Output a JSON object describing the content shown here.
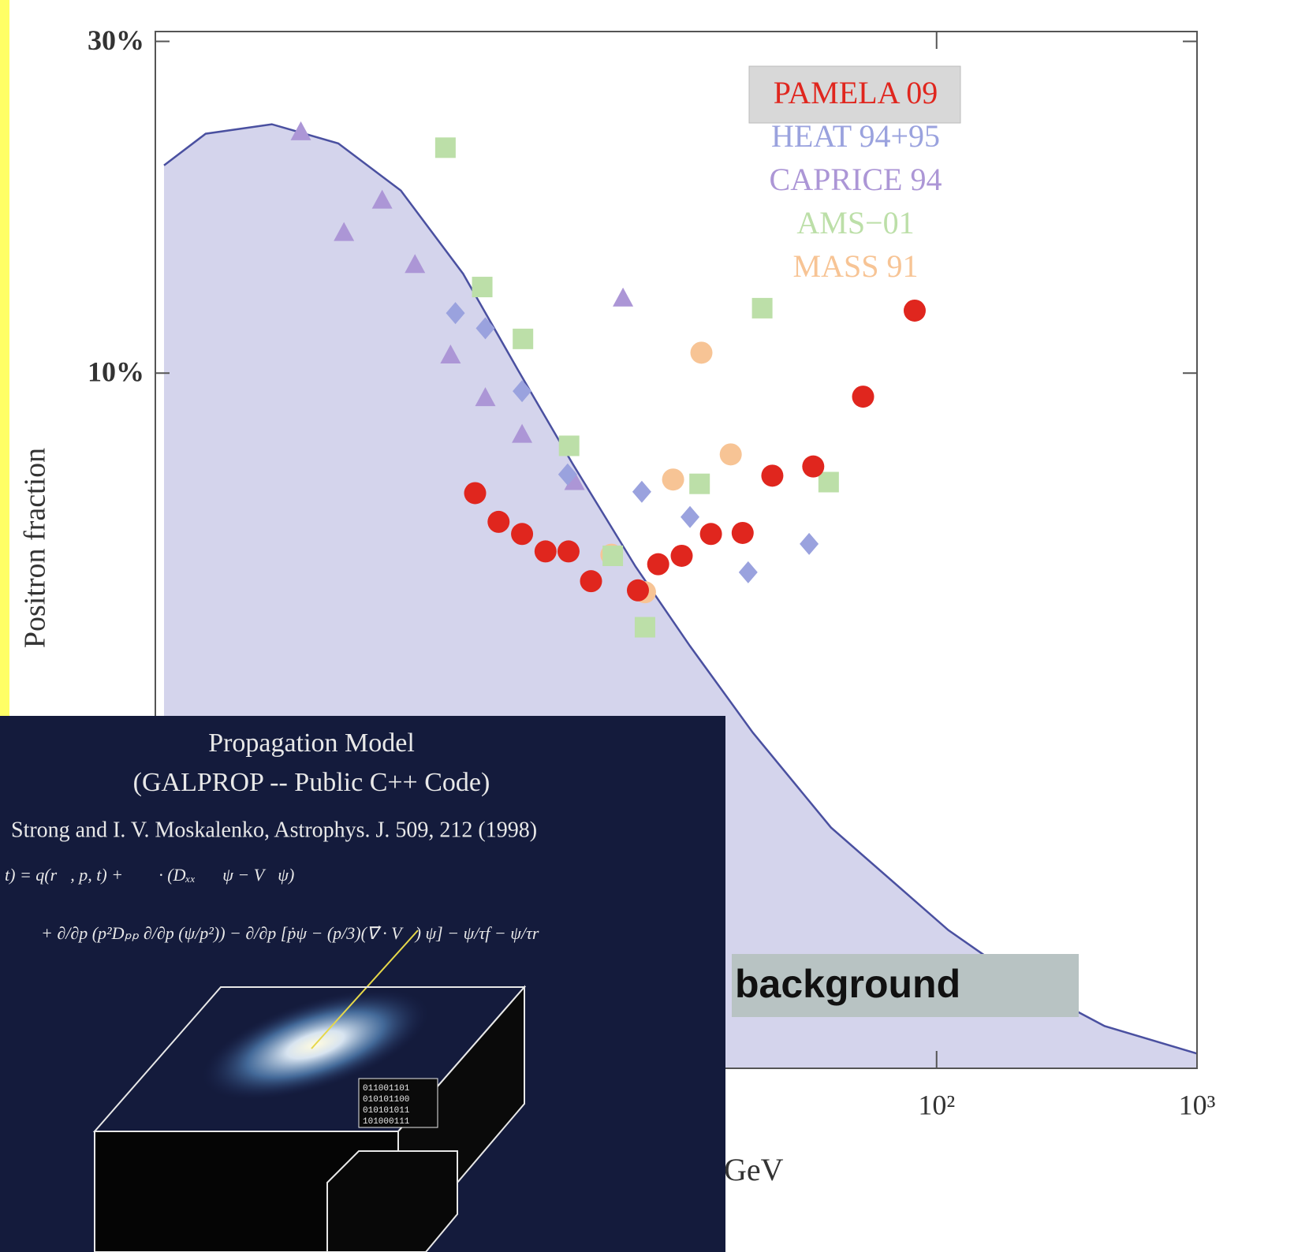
{
  "chart_data": {
    "type": "scatter",
    "y_axis_label": "Positron fraction",
    "x_axis_label": "GeV",
    "xlog": true,
    "ylog": true,
    "xlim": [
      0.1,
      1000
    ],
    "ylim": [
      1,
      31
    ],
    "xticks": [
      {
        "value": 100,
        "label": "10²"
      },
      {
        "value": 1000,
        "label": "10³"
      }
    ],
    "yticks": [
      {
        "value": 10,
        "label": "10%"
      },
      {
        "value": 30,
        "label": "30%"
      }
    ],
    "legend": "top-right",
    "area": {
      "name": "background",
      "color": "#d4d4ec",
      "line_color": "#4a50a0",
      "x": [
        0.108,
        0.156,
        0.28,
        0.504,
        0.877,
        1.52,
        2.47,
        4.01,
        6.98,
        11.3,
        19.7,
        39.3,
        111,
        221,
        442,
        1000
      ],
      "values": [
        19.9,
        22.1,
        22.8,
        21.4,
        18.3,
        13.9,
        10.1,
        7.4,
        5.27,
        4.05,
        3.04,
        2.22,
        1.58,
        1.32,
        1.15,
        1.05
      ]
    },
    "series": [
      {
        "name": "PAMELA 09",
        "color": "#e0261e",
        "marker": "circle",
        "x": [
          1.69,
          2.08,
          2.56,
          3.15,
          3.86,
          4.71,
          7.13,
          8.53,
          10.5,
          13.6,
          18.0,
          23.4,
          33.6,
          52.2,
          82.4
        ],
        "values": [
          6.72,
          6.11,
          5.87,
          5.54,
          5.54,
          5.02,
          4.87,
          5.31,
          5.46,
          5.87,
          5.89,
          7.12,
          7.34,
          9.25,
          12.3
        ]
      },
      {
        "name": "HEAT 94+95",
        "color": "#9aa2de",
        "marker": "diamond",
        "x": [
          1.42,
          1.85,
          2.56,
          3.83,
          7.38,
          11.3,
          18.9,
          32.4
        ],
        "values": [
          12.2,
          11.6,
          9.42,
          7.15,
          6.75,
          6.21,
          5.17,
          5.68
        ]
      },
      {
        "name": "CAPRICE 94",
        "color": "#ac96d6",
        "marker": "triangle",
        "x": [
          0.362,
          0.53,
          0.743,
          0.993,
          1.36,
          1.85,
          2.56,
          4.07,
          6.25
        ],
        "values": [
          22.2,
          15.9,
          17.7,
          14.3,
          10.6,
          9.2,
          8.15,
          6.97,
          12.8
        ]
      },
      {
        "name": "AMS−01",
        "color": "#bcdfa8",
        "marker": "square",
        "x": [
          1.3,
          1.8,
          2.58,
          3.88,
          5.71,
          7.59,
          12.3,
          21.4,
          38.5
        ],
        "values": [
          21.1,
          13.3,
          11.2,
          7.86,
          5.46,
          4.31,
          6.93,
          12.4,
          6.97
        ]
      },
      {
        "name": "MASS 91",
        "color": "#f7c495",
        "marker": "circle",
        "x": [
          5.64,
          7.59,
          9.73,
          12.5,
          16.2
        ],
        "values": [
          5.48,
          4.84,
          7.03,
          10.7,
          7.64
        ]
      }
    ],
    "annotation": "background"
  },
  "inset": {
    "title": "Propagation Model",
    "subtitle": "(GALPROP -- Public C++ Code)",
    "citation": "Strong and I. V. Moskalenko, Astrophys. J. 509, 212 (1998)",
    "equation_line_1": "t)   =  q(r⃗, p, t) + ∇⃗ · (Dₓₓ∇⃗ψ − V⃗ψ)",
    "equation_line_2": "+  ∂/∂p (p²Dₚₚ ∂/∂p (ψ/p²)) − ∂/∂p [ṗψ − (p/3)(∇⃗ · V⃗) ψ] − ψ/τf − ψ/τr",
    "binary": [
      "011001101",
      "010101100",
      "010101011",
      "101000111"
    ]
  }
}
